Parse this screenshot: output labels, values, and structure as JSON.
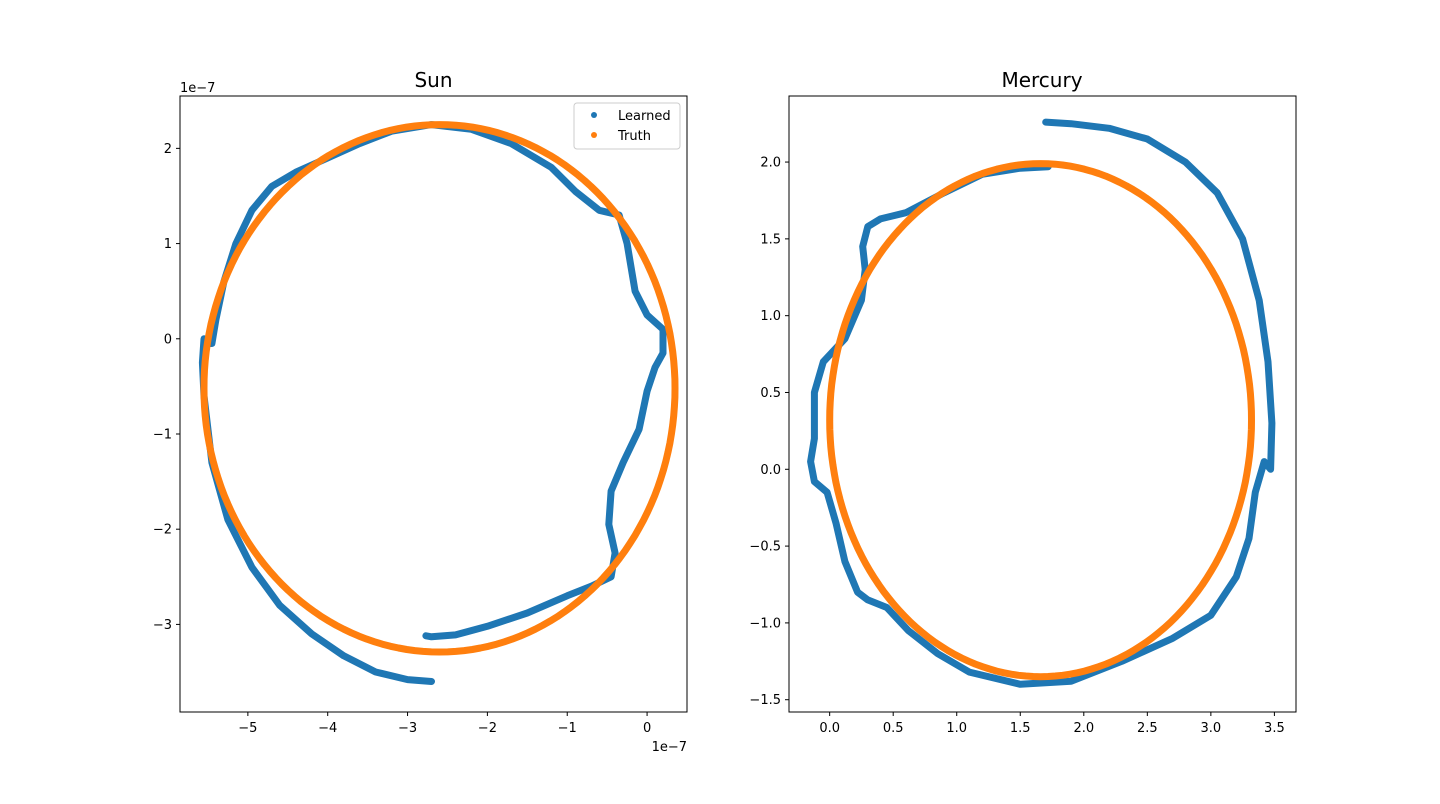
{
  "chart_data": [
    {
      "type": "scatter",
      "title": "Sun",
      "xlim": [
        -5.85,
        0.5
      ],
      "ylim": [
        -3.92,
        2.55
      ],
      "x_ticks": [
        -5,
        -4,
        -3,
        -2,
        -1,
        0
      ],
      "y_ticks": [
        -3,
        -2,
        -1,
        0,
        1,
        2
      ],
      "x_tick_labels": [
        "−5",
        "−4",
        "−3",
        "−2",
        "−1",
        "0"
      ],
      "y_tick_labels": [
        "−3",
        "−2",
        "−1",
        "0",
        "1",
        "2"
      ],
      "x_offset_text": "1e−7",
      "y_offset_text": "1e−7",
      "legend": {
        "position": "upper-right",
        "entries": [
          "Learned",
          "Truth"
        ]
      },
      "series": [
        {
          "name": "Learned",
          "color": "#1f77b4",
          "points": [
            [
              -2.7,
              -3.6
            ],
            [
              -3.0,
              -3.58
            ],
            [
              -3.4,
              -3.5
            ],
            [
              -3.8,
              -3.33
            ],
            [
              -4.2,
              -3.1
            ],
            [
              -4.6,
              -2.8
            ],
            [
              -4.95,
              -2.4
            ],
            [
              -5.25,
              -1.9
            ],
            [
              -5.45,
              -1.3
            ],
            [
              -5.55,
              -0.6
            ],
            [
              -5.57,
              -0.25
            ],
            [
              -5.55,
              0.0
            ],
            [
              -5.5,
              -0.05
            ],
            [
              -5.45,
              -0.05
            ],
            [
              -5.4,
              0.2
            ],
            [
              -5.3,
              0.6
            ],
            [
              -5.15,
              1.0
            ],
            [
              -4.95,
              1.35
            ],
            [
              -4.7,
              1.6
            ],
            [
              -4.4,
              1.75
            ],
            [
              -4.0,
              1.9
            ],
            [
              -3.6,
              2.05
            ],
            [
              -3.2,
              2.18
            ],
            [
              -2.7,
              2.25
            ],
            [
              -2.2,
              2.2
            ],
            [
              -1.7,
              2.05
            ],
            [
              -1.2,
              1.8
            ],
            [
              -0.9,
              1.55
            ],
            [
              -0.6,
              1.35
            ],
            [
              -0.35,
              1.3
            ],
            [
              -0.25,
              1.0
            ],
            [
              -0.15,
              0.5
            ],
            [
              0.0,
              0.25
            ],
            [
              0.2,
              0.1
            ],
            [
              0.2,
              -0.15
            ],
            [
              0.1,
              -0.3
            ],
            [
              0.0,
              -0.55
            ],
            [
              -0.1,
              -0.95
            ],
            [
              -0.3,
              -1.3
            ],
            [
              -0.45,
              -1.6
            ],
            [
              -0.48,
              -1.95
            ],
            [
              -0.4,
              -2.25
            ],
            [
              -0.45,
              -2.5
            ],
            [
              -0.7,
              -2.6
            ],
            [
              -1.0,
              -2.7
            ],
            [
              -1.5,
              -2.88
            ],
            [
              -2.0,
              -3.02
            ],
            [
              -2.4,
              -3.11
            ],
            [
              -2.7,
              -3.13
            ],
            [
              -2.77,
              -3.12
            ]
          ]
        },
        {
          "name": "Truth",
          "color": "#ff7f0e",
          "ellipse": {
            "cx": -2.6,
            "cy": -0.52,
            "rx": 2.95,
            "ry": 2.77
          }
        }
      ]
    },
    {
      "type": "scatter",
      "title": "Mercury",
      "xlim": [
        -0.32,
        3.67
      ],
      "ylim": [
        -1.58,
        2.43
      ],
      "x_ticks": [
        0.0,
        0.5,
        1.0,
        1.5,
        2.0,
        2.5,
        3.0,
        3.5
      ],
      "y_ticks": [
        -1.5,
        -1.0,
        -0.5,
        0.0,
        0.5,
        1.0,
        1.5,
        2.0
      ],
      "x_tick_labels": [
        "0.0",
        "0.5",
        "1.0",
        "1.5",
        "2.0",
        "2.5",
        "3.0",
        "3.5"
      ],
      "y_tick_labels": [
        "−1.5",
        "−1.0",
        "−0.5",
        "0.0",
        "0.5",
        "1.0",
        "1.5",
        "2.0"
      ],
      "series": [
        {
          "name": "Learned",
          "color": "#1f77b4",
          "points": [
            [
              1.72,
              1.97
            ],
            [
              1.5,
              1.96
            ],
            [
              1.2,
              1.92
            ],
            [
              0.9,
              1.8
            ],
            [
              0.6,
              1.67
            ],
            [
              0.4,
              1.63
            ],
            [
              0.3,
              1.58
            ],
            [
              0.26,
              1.45
            ],
            [
              0.28,
              1.3
            ],
            [
              0.25,
              1.1
            ],
            [
              0.12,
              0.85
            ],
            [
              -0.05,
              0.7
            ],
            [
              -0.12,
              0.5
            ],
            [
              -0.12,
              0.2
            ],
            [
              -0.15,
              0.05
            ],
            [
              -0.12,
              -0.08
            ],
            [
              -0.02,
              -0.15
            ],
            [
              0.05,
              -0.35
            ],
            [
              0.12,
              -0.6
            ],
            [
              0.22,
              -0.8
            ],
            [
              0.3,
              -0.85
            ],
            [
              0.45,
              -0.9
            ],
            [
              0.62,
              -1.05
            ],
            [
              0.85,
              -1.2
            ],
            [
              1.1,
              -1.32
            ],
            [
              1.5,
              -1.4
            ],
            [
              1.9,
              -1.38
            ],
            [
              2.3,
              -1.25
            ],
            [
              2.7,
              -1.1
            ],
            [
              3.0,
              -0.95
            ],
            [
              3.2,
              -0.7
            ],
            [
              3.3,
              -0.45
            ],
            [
              3.35,
              -0.15
            ],
            [
              3.42,
              0.05
            ],
            [
              3.47,
              0.0
            ],
            [
              3.48,
              0.3
            ],
            [
              3.45,
              0.7
            ],
            [
              3.38,
              1.1
            ],
            [
              3.25,
              1.5
            ],
            [
              3.05,
              1.8
            ],
            [
              2.8,
              2.0
            ],
            [
              2.5,
              2.15
            ],
            [
              2.2,
              2.22
            ],
            [
              1.9,
              2.25
            ],
            [
              1.7,
              2.26
            ]
          ]
        },
        {
          "name": "Truth",
          "color": "#ff7f0e",
          "ellipse": {
            "cx": 1.66,
            "cy": 0.32,
            "rx": 1.66,
            "ry": 1.67
          }
        }
      ]
    }
  ]
}
